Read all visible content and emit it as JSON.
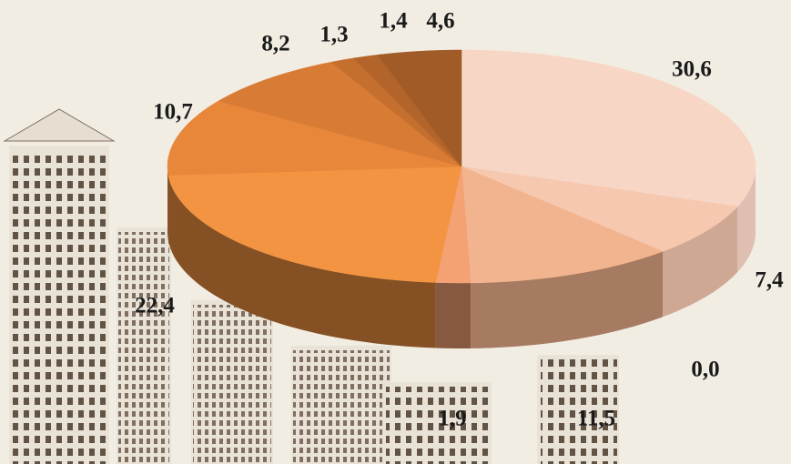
{
  "chart_data": {
    "type": "pie3d",
    "categories": [
      null,
      null,
      null,
      null,
      null,
      null,
      null,
      null,
      null,
      null,
      null
    ],
    "values": [
      30.6,
      7.4,
      0.0,
      11.5,
      1.9,
      22.4,
      10.7,
      8.2,
      1.3,
      1.4,
      4.6
    ],
    "value_labels": [
      "30,6",
      "7,4",
      "0,0",
      "11,5",
      "1,9",
      "22,4",
      "10,7",
      "8,2",
      "1,3",
      "1,4",
      "4,6"
    ],
    "colors": [
      "#f8d6c6",
      "#f6c8b0",
      "#f4bea0",
      "#f2b48e",
      "#f4a274",
      "#f29442",
      "#e8873a",
      "#d87b35",
      "#c56f2f",
      "#b2642a",
      "#a05b27"
    ]
  }
}
